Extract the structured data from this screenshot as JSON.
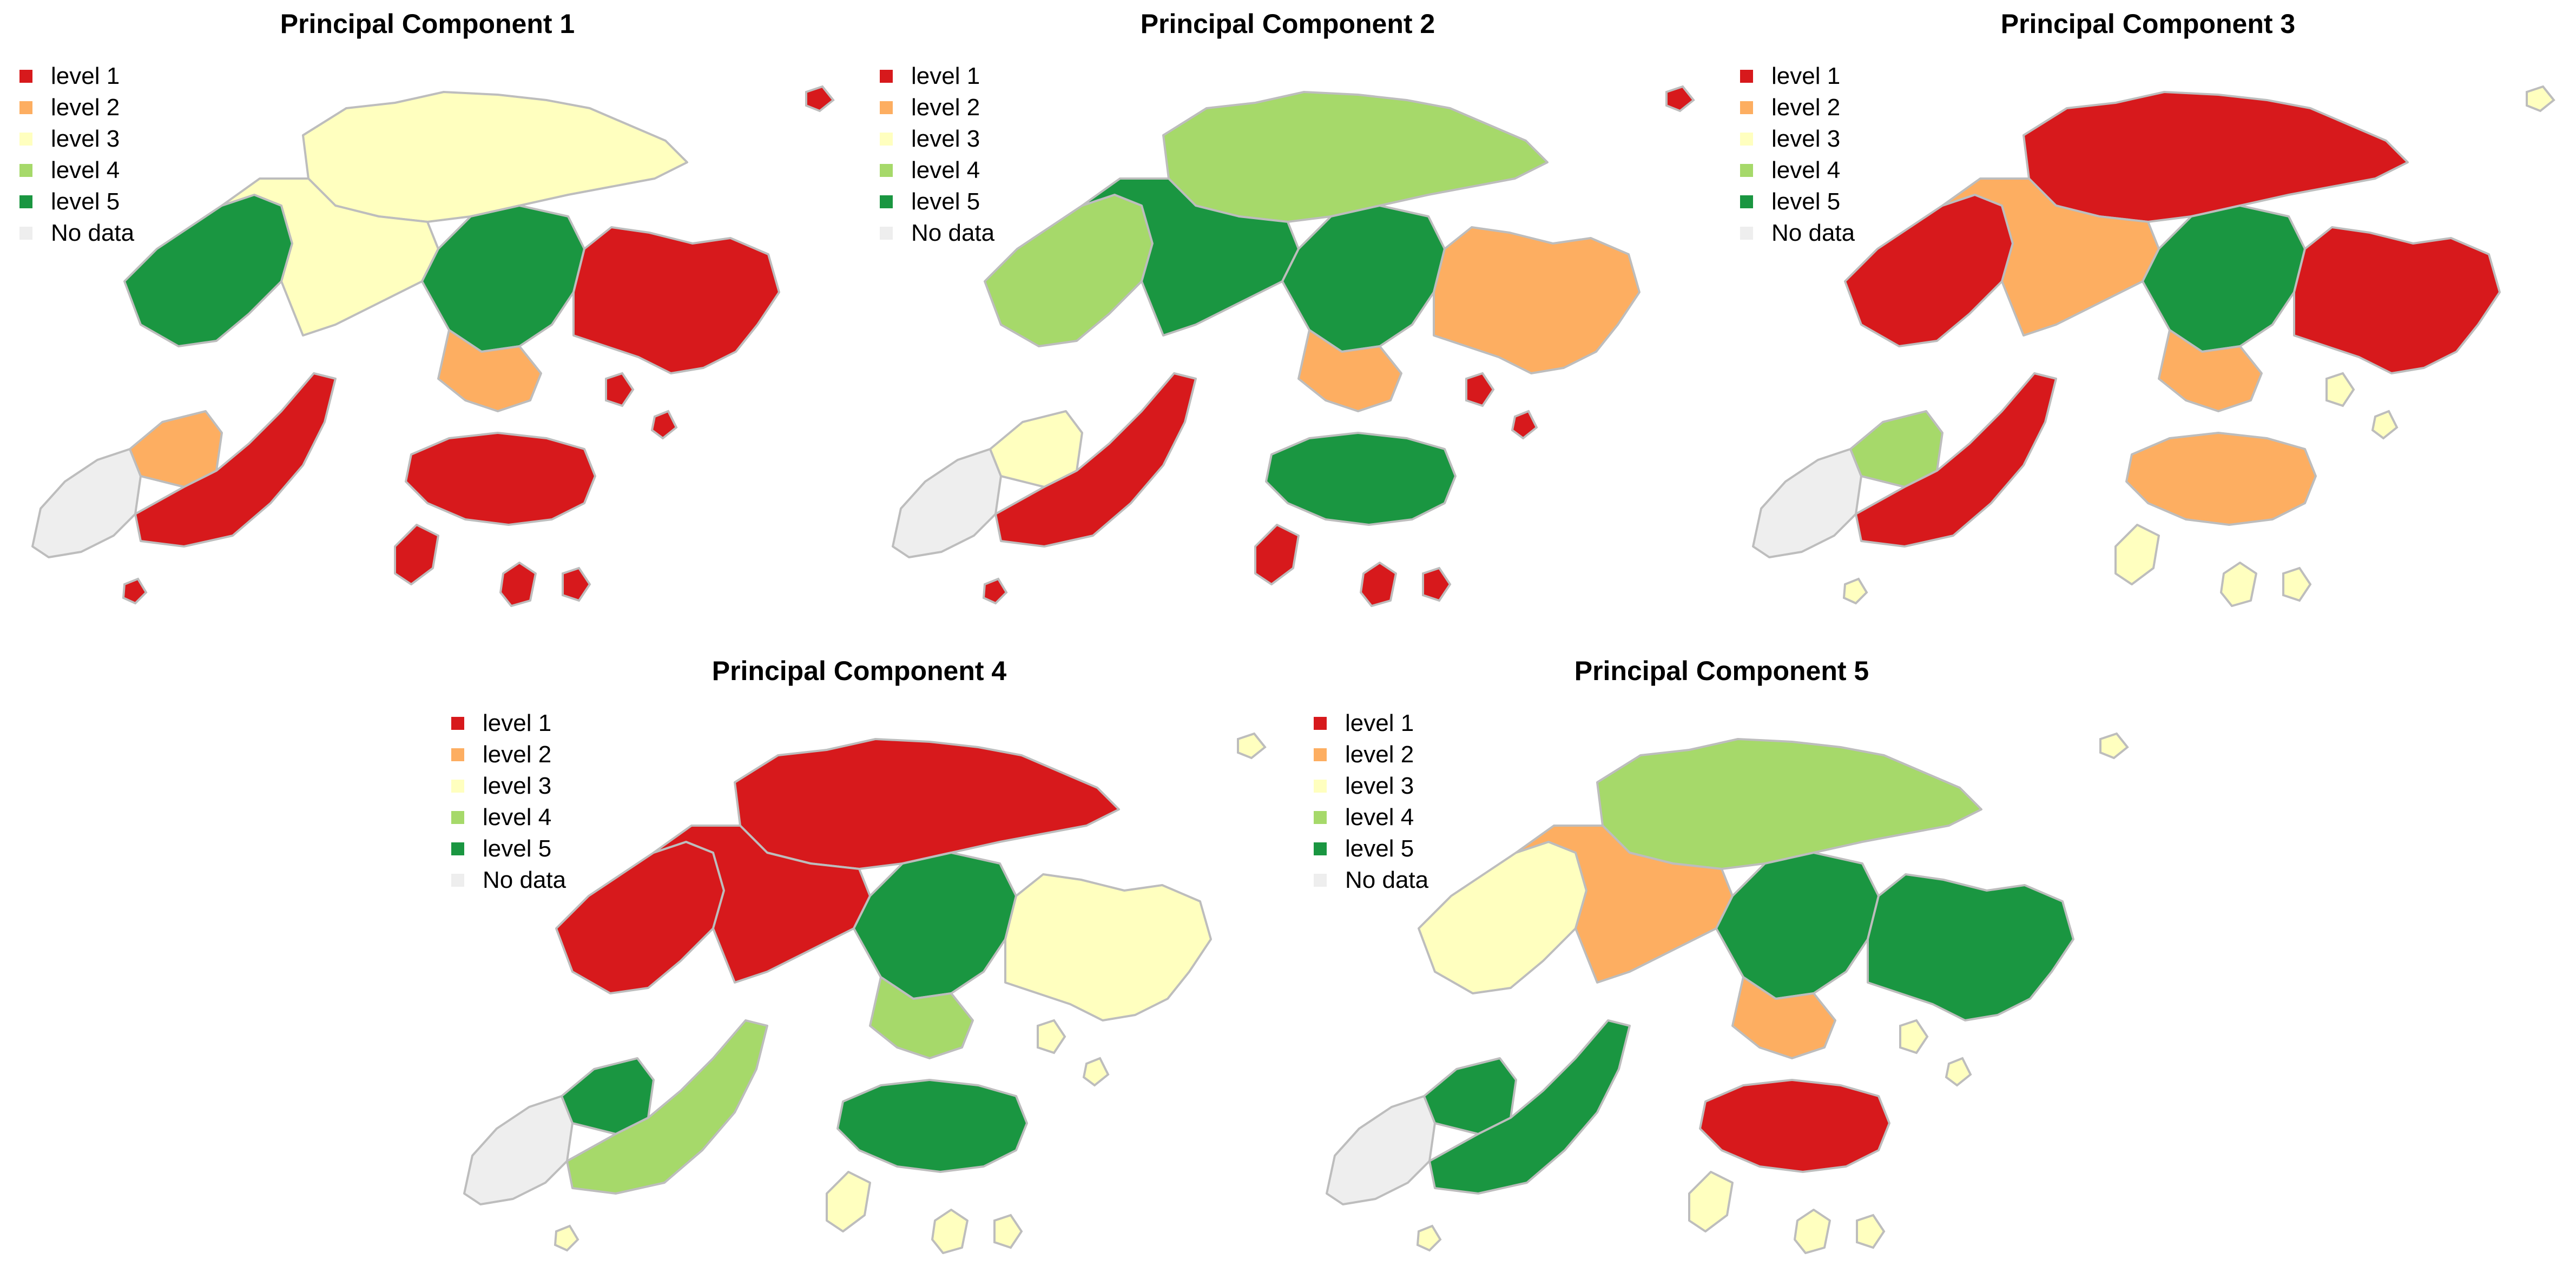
{
  "figure": "maps",
  "colors": {
    "level 1": "#d7191c",
    "level 2": "#fdae61",
    "level 3": "#ffffbf",
    "level 4": "#a6d96a",
    "level 5": "#1a9641",
    "No data": "#eeeeee",
    "boundary": "#bdbdbd"
  },
  "legend": {
    "items": [
      {
        "key": "level 1",
        "label": "level 1"
      },
      {
        "key": "level 2",
        "label": "level 2"
      },
      {
        "key": "level 3",
        "label": "level 3"
      },
      {
        "key": "level 4",
        "label": "level 4"
      },
      {
        "key": "level 5",
        "label": "level 5"
      },
      {
        "key": "No data",
        "label": "No data"
      }
    ]
  },
  "panels": [
    {
      "title": "Principal Component 1",
      "regions": {
        "lantau_west": "No data",
        "lantau_north": "level 2",
        "lantau_south": "level 1",
        "lamma": "level 1",
        "ne_nt": "level 3",
        "nw_nt": "level 5",
        "central_nt": "level 3",
        "shatin": "level 5",
        "kowloon": "level 2",
        "sai_kung": "level 1",
        "hk_island": "level 1",
        "islands_small": "level 1"
      }
    },
    {
      "title": "Principal Component 2",
      "regions": {
        "lantau_west": "No data",
        "lantau_north": "level 3",
        "lantau_south": "level 1",
        "lamma": "level 1",
        "ne_nt": "level 4",
        "nw_nt": "level 4",
        "central_nt": "level 5",
        "shatin": "level 5",
        "kowloon": "level 2",
        "sai_kung": "level 2",
        "hk_island": "level 5",
        "islands_small": "level 1"
      }
    },
    {
      "title": "Principal Component 3",
      "regions": {
        "lantau_west": "No data",
        "lantau_north": "level 4",
        "lantau_south": "level 1",
        "lamma": "level 3",
        "ne_nt": "level 1",
        "nw_nt": "level 1",
        "central_nt": "level 2",
        "shatin": "level 5",
        "kowloon": "level 2",
        "sai_kung": "level 1",
        "hk_island": "level 2",
        "islands_small": "level 3"
      }
    },
    {
      "title": "Principal Component 4",
      "regions": {
        "lantau_west": "No data",
        "lantau_north": "level 5",
        "lantau_south": "level 4",
        "lamma": "level 3",
        "ne_nt": "level 1",
        "nw_nt": "level 1",
        "central_nt": "level 1",
        "shatin": "level 5",
        "kowloon": "level 4",
        "sai_kung": "level 3",
        "hk_island": "level 5",
        "islands_small": "level 3"
      }
    },
    {
      "title": "Principal Component 5",
      "regions": {
        "lantau_west": "No data",
        "lantau_north": "level 5",
        "lantau_south": "level 5",
        "lamma": "level 3",
        "ne_nt": "level 4",
        "nw_nt": "level 3",
        "central_nt": "level 2",
        "shatin": "level 5",
        "kowloon": "level 2",
        "sai_kung": "level 5",
        "hk_island": "level 1",
        "islands_small": "level 3"
      }
    }
  ]
}
